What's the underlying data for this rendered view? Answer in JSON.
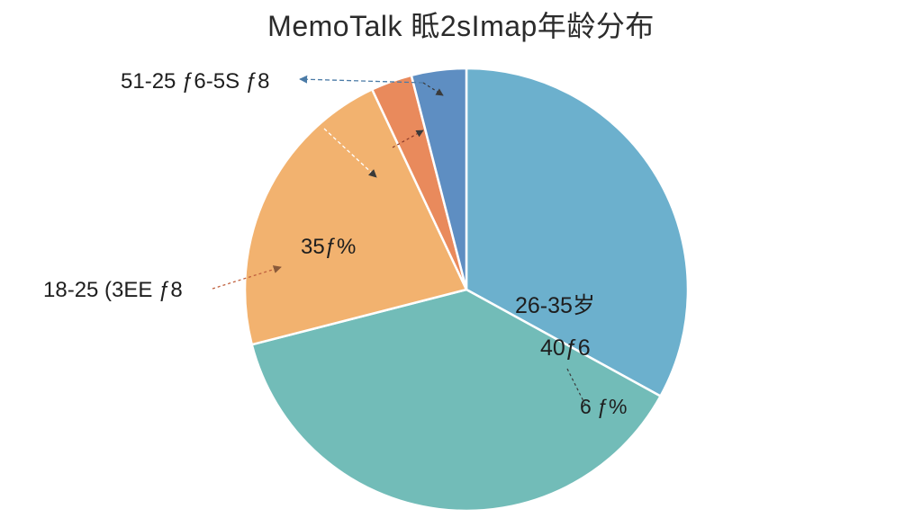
{
  "chart_data": {
    "type": "pie",
    "title": "MemoTalk 眡2sImap年龄分布",
    "colors": {
      "teal": "#72bcb8",
      "blue": "#6cb0cd",
      "orange": "#f2b26f",
      "red_orange": "#e98a5c",
      "steel_blue": "#5e8ec2",
      "leader_line": "#c0613e",
      "leader_line_blue": "#4a7aa6"
    },
    "slices": [
      {
        "label": "26-35岁",
        "value": 33,
        "color": "#6cb0cd"
      },
      {
        "label": "40ƒ6",
        "value": 38,
        "color": "#72bcb8"
      },
      {
        "label": "35ƒ%",
        "value": 22,
        "color": "#f2b26f"
      },
      {
        "label": "",
        "value": 3,
        "color": "#e98a5c"
      },
      {
        "label": "51-25 ƒ6-5S ƒ8",
        "value": 4,
        "color": "#5e8ec2"
      }
    ],
    "annotations": [
      {
        "id": "label-26-35",
        "text": "26-35岁"
      },
      {
        "id": "label-40",
        "text": "40ƒ6"
      },
      {
        "id": "label-small",
        "text": "6 ƒ%"
      },
      {
        "id": "label-35",
        "text": "35ƒ%"
      },
      {
        "id": "label-18-25",
        "text": "18-25 (3EE ƒ8"
      },
      {
        "id": "label-51-25",
        "text": "51-25 ƒ6-5S ƒ8"
      }
    ]
  }
}
